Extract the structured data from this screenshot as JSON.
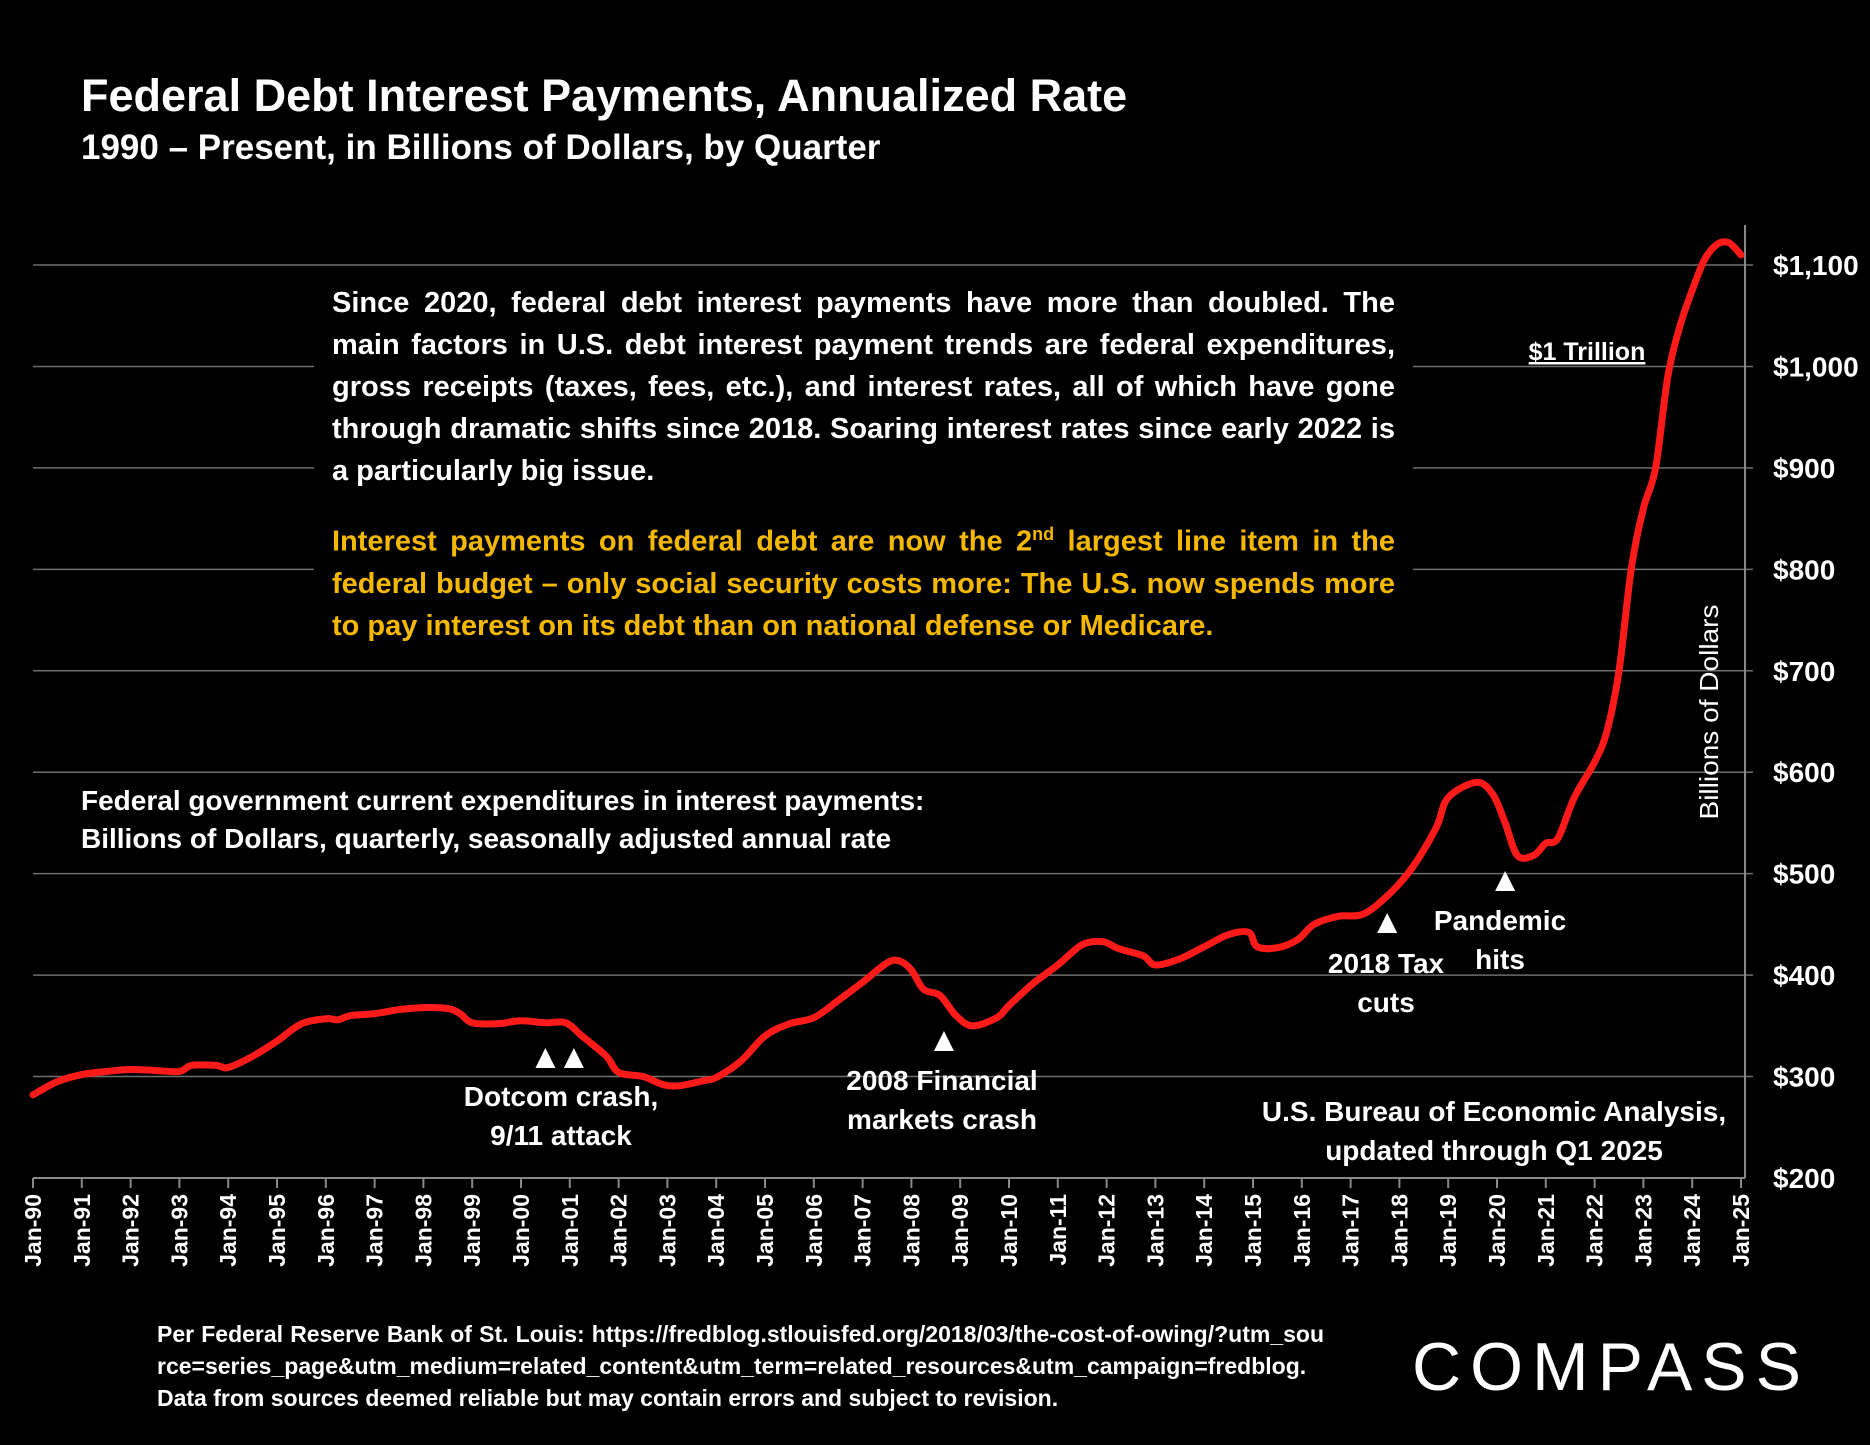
{
  "title": "Federal Debt Interest Payments, Annualized Rate",
  "subtitle": "1990 – Present, in Billions of Dollars, by Quarter",
  "commentary": {
    "paragraph1": "Since 2020, federal debt interest payments have more than doubled. The main factors in U.S. debt interest payment trends are federal expenditures, gross receipts (taxes, fees, etc.), and interest rates, all of which have gone through dramatic shifts since 2018. Soaring interest rates since early 2022 is a particularly big issue.",
    "paragraph2_before": "Interest payments on federal debt are now the 2",
    "paragraph2_sup": "nd",
    "paragraph2_after": " largest line item in the federal budget – only social security costs more: The U.S. now spends more to pay interest on its debt than on national defense or Medicare."
  },
  "series_label": {
    "line1": "Federal government current expenditures in interest payments:",
    "line2": "Billions of Dollars, quarterly, seasonally adjusted annual rate"
  },
  "source": {
    "line1": "U.S. Bureau of Economic Analysis,",
    "line2": "updated through Q1 2025"
  },
  "footer": "Per Federal Reserve Bank of St. Louis: https://fredblog.stlouisfed.org/2018/03/the-cost-of-owing/?utm_source=series_page&utm_medium=related_content&utm_term=related_resources&utm_campaign=fredblog. Data from sources deemed reliable but may contain errors and subject to revision.",
  "logo": "COMPASS",
  "colors": {
    "line": "#ff1a1a",
    "background": "#000000",
    "highlight_text": "#f5b800",
    "grid": "#6e6e6e"
  },
  "chart_data": {
    "type": "line",
    "title": "Federal Debt Interest Payments, Annualized Rate",
    "subtitle": "1990 – Present, in Billions of Dollars, by Quarter",
    "ylabel": "Billions of Dollars",
    "xlabel": "",
    "ylim": [
      200,
      1100
    ],
    "xlim": [
      "1990-01",
      "2025-01"
    ],
    "grid": true,
    "y_ticks": [
      "$200",
      "$300",
      "$400",
      "$500",
      "$600",
      "$700",
      "$800",
      "$900",
      "$1,000",
      "$1,100"
    ],
    "x_ticks": [
      "Jan-90",
      "Jan-91",
      "Jan-92",
      "Jan-93",
      "Jan-94",
      "Jan-95",
      "Jan-96",
      "Jan-97",
      "Jan-98",
      "Jan-99",
      "Jan-00",
      "Jan-01",
      "Jan-02",
      "Jan-03",
      "Jan-04",
      "Jan-05",
      "Jan-06",
      "Jan-07",
      "Jan-08",
      "Jan-09",
      "Jan-10",
      "Jan-11",
      "Jan-12",
      "Jan-13",
      "Jan-14",
      "Jan-15",
      "Jan-16",
      "Jan-17",
      "Jan-18",
      "Jan-19",
      "Jan-20",
      "Jan-21",
      "Jan-22",
      "Jan-23",
      "Jan-24",
      "Jan-25"
    ],
    "series": [
      {
        "x": [
          "1990-01",
          "1990-07",
          "1991-01",
          "1991-07",
          "1992-01",
          "1992-07",
          "1993-01",
          "1993-04",
          "1993-10",
          "1994-01",
          "1994-07",
          "1995-01",
          "1995-07",
          "1996-01",
          "1996-04",
          "1996-07",
          "1997-01",
          "1997-07",
          "1998-01",
          "1998-07",
          "1998-10",
          "1999-01",
          "1999-07",
          "2000-01",
          "2000-07",
          "2000-12",
          "2001-04",
          "2001-10",
          "2002-01",
          "2002-07",
          "2002-12",
          "2003-04",
          "2003-10",
          "2004-01",
          "2004-07",
          "2005-01",
          "2005-07",
          "2006-01",
          "2006-07",
          "2007-01",
          "2007-07",
          "2007-10",
          "2008-01",
          "2008-04",
          "2008-08",
          "2008-12",
          "2009-04",
          "2009-10",
          "2010-01",
          "2010-07",
          "2011-01",
          "2011-07",
          "2011-12",
          "2012-04",
          "2012-10",
          "2013-01",
          "2013-07",
          "2014-01",
          "2014-07",
          "2014-12",
          "2015-02",
          "2015-07",
          "2015-12",
          "2016-04",
          "2016-10",
          "2017-04",
          "2017-10",
          "2018-04",
          "2018-10",
          "2019-01",
          "2019-08",
          "2019-12",
          "2020-03",
          "2020-06",
          "2020-10",
          "2021-01",
          "2021-04",
          "2021-08",
          "2022-01",
          "2022-04",
          "2022-07",
          "2022-10",
          "2023-01",
          "2023-04",
          "2023-07",
          "2023-10",
          "2024-01",
          "2024-04",
          "2024-07",
          "2024-10",
          "2025-01"
        ],
        "values": [
          282,
          295,
          302,
          305,
          307,
          306,
          305,
          311,
          311,
          309,
          320,
          335,
          352,
          357,
          356,
          360,
          362,
          366,
          368,
          367,
          362,
          353,
          352,
          355,
          353,
          353,
          340,
          320,
          304,
          300,
          292,
          291,
          296,
          299,
          315,
          340,
          352,
          358,
          375,
          393,
          412,
          414,
          405,
          386,
          380,
          360,
          350,
          358,
          370,
          392,
          410,
          430,
          433,
          426,
          419,
          410,
          416,
          428,
          440,
          442,
          428,
          427,
          435,
          450,
          458,
          460,
          478,
          505,
          545,
          575,
          590,
          578,
          550,
          518,
          518,
          530,
          535,
          575,
          610,
          640,
          700,
          800,
          860,
          900,
          990,
          1040,
          1075,
          1105,
          1120,
          1122,
          1110
        ]
      }
    ],
    "annotations": [
      {
        "text_line1": "Dotcom crash,",
        "text_line2": "9/11 attack",
        "markers": [
          "2000-07",
          "2001-02"
        ]
      },
      {
        "text_line1": "2008 Financial",
        "text_line2": "markets crash",
        "markers": [
          "2008-09"
        ]
      },
      {
        "text_line1": "2018 Tax",
        "text_line2": "cuts",
        "markers": [
          "2017-10"
        ]
      },
      {
        "text_line1": "Pandemic",
        "text_line2": "hits",
        "markers": [
          "2020-03"
        ]
      },
      {
        "text_line1": "$1 Trillion",
        "text_line2": "",
        "markers": []
      }
    ]
  }
}
